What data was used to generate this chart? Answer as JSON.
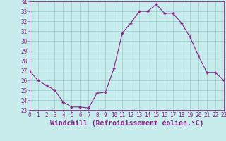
{
  "x": [
    0,
    1,
    2,
    3,
    4,
    5,
    6,
    7,
    8,
    9,
    10,
    11,
    12,
    13,
    14,
    15,
    16,
    17,
    18,
    19,
    20,
    21,
    22,
    23
  ],
  "y": [
    27,
    26,
    25.5,
    25,
    23.8,
    23.3,
    23.3,
    23.2,
    24.7,
    24.8,
    27.2,
    30.8,
    31.8,
    33,
    33,
    33.7,
    32.8,
    32.8,
    31.8,
    30.4,
    28.5,
    26.8,
    26.8,
    26
  ],
  "line_color": "#882288",
  "marker": "+",
  "marker_size": 3,
  "bg_color": "#c8ecec",
  "grid_color": "#99cccc",
  "xlabel": "Windchill (Refroidissement éolien,°C)",
  "ylim": [
    23,
    34
  ],
  "xlim": [
    0,
    23
  ],
  "yticks": [
    23,
    24,
    25,
    26,
    27,
    28,
    29,
    30,
    31,
    32,
    33,
    34
  ],
  "xticks": [
    0,
    1,
    2,
    3,
    4,
    5,
    6,
    7,
    8,
    9,
    10,
    11,
    12,
    13,
    14,
    15,
    16,
    17,
    18,
    19,
    20,
    21,
    22,
    23
  ],
  "tick_color": "#882288",
  "tick_fontsize": 5.5,
  "xlabel_fontsize": 7,
  "xlabel_color": "#882288"
}
